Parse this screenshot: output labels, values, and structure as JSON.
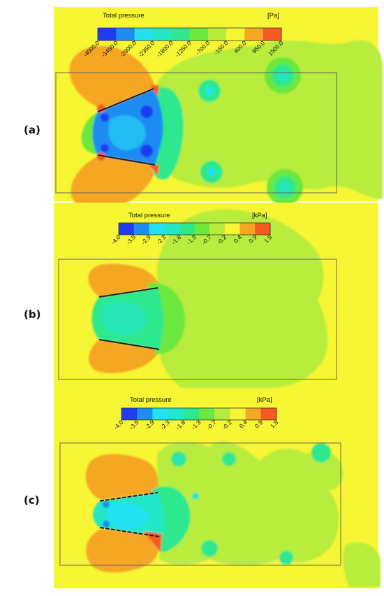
{
  "panels": [
    {
      "label": "(a)",
      "legend": {
        "title": "Total pressure",
        "unit": "[Pa]",
        "ticks": [
          "-4000.0",
          "-3450.0",
          "-2900.0",
          "-2350.0",
          "-1800.0",
          "-1250.0",
          "-700.0",
          "-150.0",
          "400.0",
          "950.0",
          "1500.0"
        ]
      }
    },
    {
      "label": "(b)",
      "legend": {
        "title": "Total pressure",
        "unit": "[kPa]",
        "ticks": [
          "-4.0",
          "-3.5",
          "-2.9",
          "-2.3",
          "-1.8",
          "-1.3",
          "-0.7",
          "-0.2",
          "0.4",
          "0.9",
          "1.5"
        ]
      }
    },
    {
      "label": "(c)",
      "legend": {
        "title": "Total pressure",
        "unit": "[kPa]",
        "ticks": [
          "-4.0",
          "-3.5",
          "-2.9",
          "-2.3",
          "-1.8",
          "-1.3",
          "-0.7",
          "-0.2",
          "0.4",
          "0.9",
          "1.5"
        ]
      }
    }
  ],
  "colormap": [
    "#1f3cf2",
    "#1e8cf2",
    "#22e2f2",
    "#22e6c8",
    "#2ee88e",
    "#6be83c",
    "#b8ec3c",
    "#f6f634",
    "#f5a623",
    "#f55a23"
  ]
}
